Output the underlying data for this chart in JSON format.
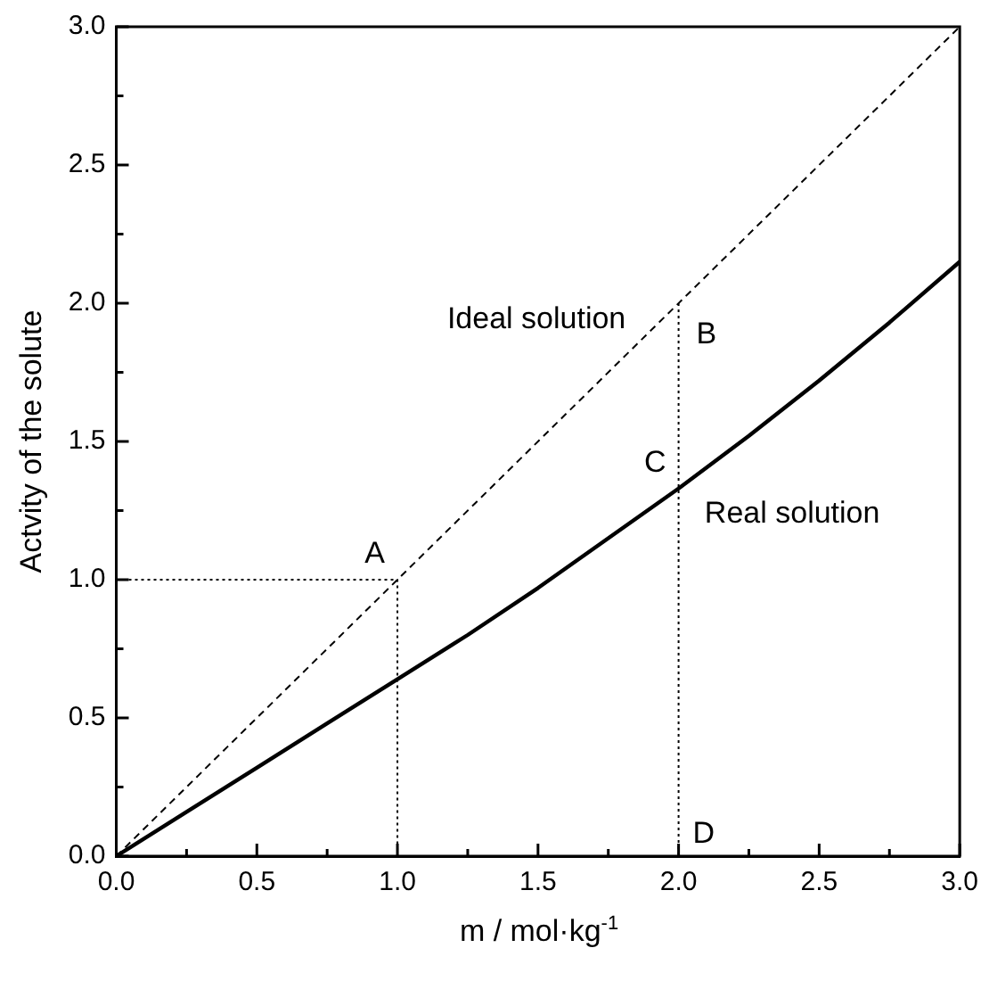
{
  "chart_data": {
    "type": "line",
    "xlabel": "m / mol·kg$^{-1}$",
    "ylabel": "Actvity of the solute",
    "xlim": [
      0,
      3
    ],
    "ylim": [
      0,
      3
    ],
    "xticks": [
      {
        "value": 0,
        "label": "0.0"
      },
      {
        "value": 0.25,
        "label": null
      },
      0.5,
      {
        "value": 0.75,
        "label": null
      },
      {
        "value": 1,
        "label": "1.0"
      },
      {
        "value": 1.25,
        "label": null
      },
      1.5,
      {
        "value": 1.75,
        "label": null
      },
      {
        "value": 2,
        "label": "2.0"
      },
      {
        "value": 2.25,
        "label": null
      },
      2.5,
      {
        "value": 2.75,
        "label": null
      },
      {
        "value": 3,
        "label": "3.0"
      }
    ],
    "yticks": [
      {
        "value": 0,
        "label": "0.0"
      },
      {
        "value": 0.25,
        "label": null
      },
      0.5,
      {
        "value": 0.75,
        "label": null
      },
      {
        "value": 1,
        "label": "1.0"
      },
      {
        "value": 1.25,
        "label": null
      },
      1.5,
      {
        "value": 1.75,
        "label": null
      },
      {
        "value": 2,
        "label": "2.0"
      },
      {
        "value": 2.25,
        "label": null
      },
      2.5,
      {
        "value": 2.75,
        "label": null
      },
      {
        "value": 3,
        "label": "3.0"
      }
    ],
    "grid": false,
    "legend": false,
    "marker": "none",
    "series": [
      {
        "name": "Ideal solution",
        "color": "#000000",
        "line_style": "dashed",
        "x": [
          0,
          3
        ],
        "values": [
          0,
          3
        ]
      },
      {
        "name": "Real solution",
        "color": "#000000",
        "line_style": "solid",
        "x": [
          0,
          0.25,
          0.5,
          0.75,
          1,
          1.25,
          1.5,
          1.75,
          2,
          2.25,
          2.5,
          2.75,
          3
        ],
        "values": [
          0,
          0.16,
          0.32,
          0.48,
          0.64,
          0.8,
          0.97,
          1.15,
          1.33,
          1.52,
          1.72,
          1.93,
          2.15
        ]
      },
      {
        "color": "#000000",
        "line_style": "dotted",
        "x": [
          0,
          1,
          1
        ],
        "values": [
          1,
          1,
          0
        ]
      },
      {
        "color": "#000000",
        "line_style": "dotted",
        "x": [
          2,
          2
        ],
        "values": [
          2,
          0
        ]
      }
    ],
    "annotations": [
      "A",
      "B",
      "C",
      "D"
    ]
  }
}
